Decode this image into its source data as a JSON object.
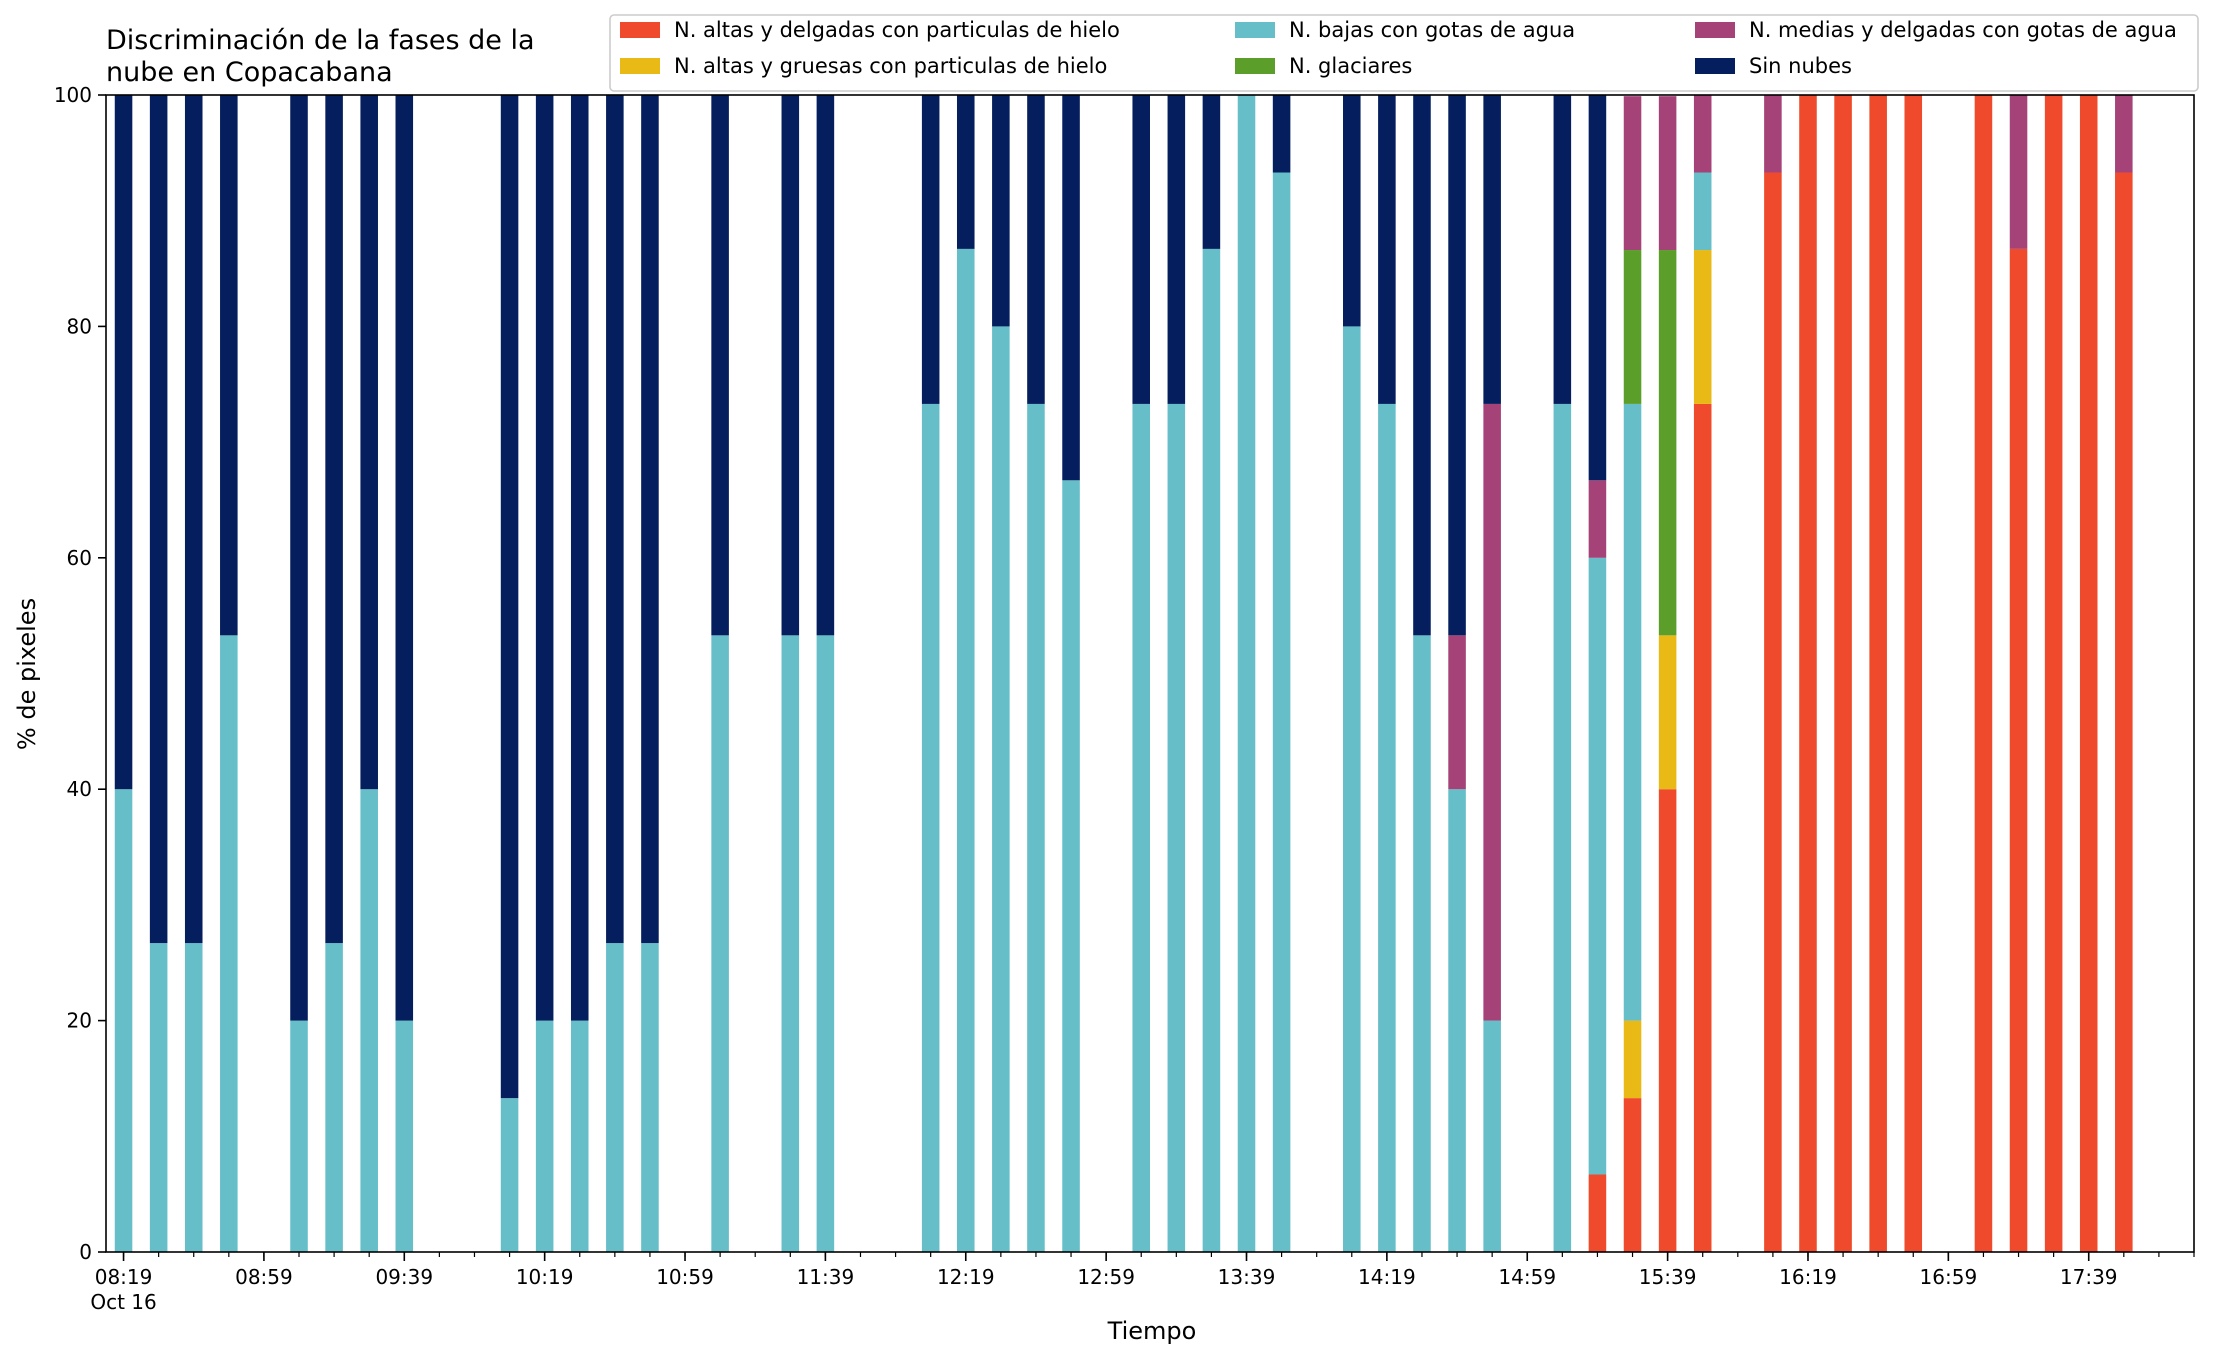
{
  "chart_data": {
    "type": "bar",
    "stacked": true,
    "title": "Discriminación de la fases de la\nnube en Copacabana",
    "xlabel": "Tiempo",
    "ylabel": "% de pixeles",
    "ylim": [
      0,
      100
    ],
    "yticks": [
      0,
      20,
      40,
      60,
      80,
      100
    ],
    "xlim": [
      "08:14",
      "18:09"
    ],
    "xticks": [
      {
        "time": "08:19",
        "label": "08:19",
        "sublabel": "Oct 16"
      },
      {
        "time": "08:59",
        "label": "08:59"
      },
      {
        "time": "09:39",
        "label": "09:39"
      },
      {
        "time": "10:19",
        "label": "10:19"
      },
      {
        "time": "10:59",
        "label": "10:59"
      },
      {
        "time": "11:39",
        "label": "11:39"
      },
      {
        "time": "12:19",
        "label": "12:19"
      },
      {
        "time": "12:59",
        "label": "12:59"
      },
      {
        "time": "13:39",
        "label": "13:39"
      },
      {
        "time": "14:19",
        "label": "14:19"
      },
      {
        "time": "14:59",
        "label": "14:59"
      },
      {
        "time": "15:39",
        "label": "15:39"
      },
      {
        "time": "16:19",
        "label": "16:19"
      },
      {
        "time": "16:59",
        "label": "16:59"
      },
      {
        "time": "17:39",
        "label": "17:39"
      }
    ],
    "minor_tick_interval_minutes": 10,
    "bar_width_minutes": 5,
    "grid": false,
    "legend_position": "top-right",
    "series": [
      {
        "key": "altas_delgadas_hielo",
        "name": "N. altas y delgadas con particulas de hielo",
        "color": "#ee4a2b"
      },
      {
        "key": "altas_gruesas_hielo",
        "name": "N. altas y gruesas con particulas de hielo",
        "color": "#e9b915"
      },
      {
        "key": "bajas_agua",
        "name": "N. bajas con gotas de agua",
        "color": "#66bec9"
      },
      {
        "key": "glaciares",
        "name": "N. glaciares",
        "color": "#5b9e2a"
      },
      {
        "key": "medias_delgadas_agua",
        "name": "N. medias y delgadas con gotas de agua",
        "color": "#a54379"
      },
      {
        "key": "sin_nubes",
        "name": "Sin nubes",
        "color": "#041e5e"
      }
    ],
    "bars": [
      {
        "time": "08:19",
        "altas_delgadas_hielo": 0,
        "altas_gruesas_hielo": 0,
        "bajas_agua": 40,
        "glaciares": 0,
        "medias_delgadas_agua": 0,
        "sin_nubes": 60
      },
      {
        "time": "08:29",
        "altas_delgadas_hielo": 0,
        "altas_gruesas_hielo": 0,
        "bajas_agua": 26.7,
        "glaciares": 0,
        "medias_delgadas_agua": 0,
        "sin_nubes": 73.3
      },
      {
        "time": "08:39",
        "altas_delgadas_hielo": 0,
        "altas_gruesas_hielo": 0,
        "bajas_agua": 26.7,
        "glaciares": 0,
        "medias_delgadas_agua": 0,
        "sin_nubes": 73.3
      },
      {
        "time": "08:49",
        "altas_delgadas_hielo": 0,
        "altas_gruesas_hielo": 0,
        "bajas_agua": 53.3,
        "glaciares": 0,
        "medias_delgadas_agua": 0,
        "sin_nubes": 46.7
      },
      {
        "time": "09:09",
        "altas_delgadas_hielo": 0,
        "altas_gruesas_hielo": 0,
        "bajas_agua": 20,
        "glaciares": 0,
        "medias_delgadas_agua": 0,
        "sin_nubes": 80
      },
      {
        "time": "09:19",
        "altas_delgadas_hielo": 0,
        "altas_gruesas_hielo": 0,
        "bajas_agua": 26.7,
        "glaciares": 0,
        "medias_delgadas_agua": 0,
        "sin_nubes": 73.3
      },
      {
        "time": "09:29",
        "altas_delgadas_hielo": 0,
        "altas_gruesas_hielo": 0,
        "bajas_agua": 40,
        "glaciares": 0,
        "medias_delgadas_agua": 0,
        "sin_nubes": 60
      },
      {
        "time": "09:39",
        "altas_delgadas_hielo": 0,
        "altas_gruesas_hielo": 0,
        "bajas_agua": 20,
        "glaciares": 0,
        "medias_delgadas_agua": 0,
        "sin_nubes": 80
      },
      {
        "time": "10:09",
        "altas_delgadas_hielo": 0,
        "altas_gruesas_hielo": 0,
        "bajas_agua": 13.3,
        "glaciares": 0,
        "medias_delgadas_agua": 0,
        "sin_nubes": 86.7
      },
      {
        "time": "10:19",
        "altas_delgadas_hielo": 0,
        "altas_gruesas_hielo": 0,
        "bajas_agua": 20,
        "glaciares": 0,
        "medias_delgadas_agua": 0,
        "sin_nubes": 80
      },
      {
        "time": "10:29",
        "altas_delgadas_hielo": 0,
        "altas_gruesas_hielo": 0,
        "bajas_agua": 20,
        "glaciares": 0,
        "medias_delgadas_agua": 0,
        "sin_nubes": 80
      },
      {
        "time": "10:39",
        "altas_delgadas_hielo": 0,
        "altas_gruesas_hielo": 0,
        "bajas_agua": 26.7,
        "glaciares": 0,
        "medias_delgadas_agua": 0,
        "sin_nubes": 73.3
      },
      {
        "time": "10:49",
        "altas_delgadas_hielo": 0,
        "altas_gruesas_hielo": 0,
        "bajas_agua": 26.7,
        "glaciares": 0,
        "medias_delgadas_agua": 0,
        "sin_nubes": 73.3
      },
      {
        "time": "11:09",
        "altas_delgadas_hielo": 0,
        "altas_gruesas_hielo": 0,
        "bajas_agua": 53.3,
        "glaciares": 0,
        "medias_delgadas_agua": 0,
        "sin_nubes": 46.7
      },
      {
        "time": "11:29",
        "altas_delgadas_hielo": 0,
        "altas_gruesas_hielo": 0,
        "bajas_agua": 53.3,
        "glaciares": 0,
        "medias_delgadas_agua": 0,
        "sin_nubes": 46.7
      },
      {
        "time": "11:39",
        "altas_delgadas_hielo": 0,
        "altas_gruesas_hielo": 0,
        "bajas_agua": 53.3,
        "glaciares": 0,
        "medias_delgadas_agua": 0,
        "sin_nubes": 46.7
      },
      {
        "time": "12:09",
        "altas_delgadas_hielo": 0,
        "altas_gruesas_hielo": 0,
        "bajas_agua": 73.3,
        "glaciares": 0,
        "medias_delgadas_agua": 0,
        "sin_nubes": 26.7
      },
      {
        "time": "12:19",
        "altas_delgadas_hielo": 0,
        "altas_gruesas_hielo": 0,
        "bajas_agua": 86.7,
        "glaciares": 0,
        "medias_delgadas_agua": 0,
        "sin_nubes": 13.3
      },
      {
        "time": "12:29",
        "altas_delgadas_hielo": 0,
        "altas_gruesas_hielo": 0,
        "bajas_agua": 80,
        "glaciares": 0,
        "medias_delgadas_agua": 0,
        "sin_nubes": 20
      },
      {
        "time": "12:39",
        "altas_delgadas_hielo": 0,
        "altas_gruesas_hielo": 0,
        "bajas_agua": 73.3,
        "glaciares": 0,
        "medias_delgadas_agua": 0,
        "sin_nubes": 26.7
      },
      {
        "time": "12:49",
        "altas_delgadas_hielo": 0,
        "altas_gruesas_hielo": 0,
        "bajas_agua": 66.7,
        "glaciares": 0,
        "medias_delgadas_agua": 0,
        "sin_nubes": 33.3
      },
      {
        "time": "13:09",
        "altas_delgadas_hielo": 0,
        "altas_gruesas_hielo": 0,
        "bajas_agua": 73.3,
        "glaciares": 0,
        "medias_delgadas_agua": 0,
        "sin_nubes": 26.7
      },
      {
        "time": "13:19",
        "altas_delgadas_hielo": 0,
        "altas_gruesas_hielo": 0,
        "bajas_agua": 73.3,
        "glaciares": 0,
        "medias_delgadas_agua": 0,
        "sin_nubes": 26.7
      },
      {
        "time": "13:29",
        "altas_delgadas_hielo": 0,
        "altas_gruesas_hielo": 0,
        "bajas_agua": 86.7,
        "glaciares": 0,
        "medias_delgadas_agua": 0,
        "sin_nubes": 13.3
      },
      {
        "time": "13:39",
        "altas_delgadas_hielo": 0,
        "altas_gruesas_hielo": 0,
        "bajas_agua": 100,
        "glaciares": 0,
        "medias_delgadas_agua": 0,
        "sin_nubes": 0
      },
      {
        "time": "13:49",
        "altas_delgadas_hielo": 0,
        "altas_gruesas_hielo": 0,
        "bajas_agua": 93.3,
        "glaciares": 0,
        "medias_delgadas_agua": 0,
        "sin_nubes": 6.7
      },
      {
        "time": "14:09",
        "altas_delgadas_hielo": 0,
        "altas_gruesas_hielo": 0,
        "bajas_agua": 80,
        "glaciares": 0,
        "medias_delgadas_agua": 0,
        "sin_nubes": 20
      },
      {
        "time": "14:19",
        "altas_delgadas_hielo": 0,
        "altas_gruesas_hielo": 0,
        "bajas_agua": 73.3,
        "glaciares": 0,
        "medias_delgadas_agua": 0,
        "sin_nubes": 26.7
      },
      {
        "time": "14:29",
        "altas_delgadas_hielo": 0,
        "altas_gruesas_hielo": 0,
        "bajas_agua": 53.3,
        "glaciares": 0,
        "medias_delgadas_agua": 0,
        "sin_nubes": 46.7
      },
      {
        "time": "14:39",
        "altas_delgadas_hielo": 0,
        "altas_gruesas_hielo": 0,
        "bajas_agua": 40,
        "glaciares": 0,
        "medias_delgadas_agua": 13.3,
        "sin_nubes": 46.7
      },
      {
        "time": "14:49",
        "altas_delgadas_hielo": 0,
        "altas_gruesas_hielo": 0,
        "bajas_agua": 20,
        "glaciares": 0,
        "medias_delgadas_agua": 53.3,
        "sin_nubes": 26.7
      },
      {
        "time": "15:09",
        "altas_delgadas_hielo": 0,
        "altas_gruesas_hielo": 0,
        "bajas_agua": 73.3,
        "glaciares": 0,
        "medias_delgadas_agua": 0,
        "sin_nubes": 26.7
      },
      {
        "time": "15:19",
        "altas_delgadas_hielo": 6.7,
        "altas_gruesas_hielo": 0,
        "bajas_agua": 53.3,
        "glaciares": 0,
        "medias_delgadas_agua": 6.7,
        "sin_nubes": 33.3
      },
      {
        "time": "15:29",
        "altas_delgadas_hielo": 13.3,
        "altas_gruesas_hielo": 6.7,
        "bajas_agua": 53.3,
        "glaciares": 13.3,
        "medias_delgadas_agua": 13.3,
        "sin_nubes": 0
      },
      {
        "time": "15:39",
        "altas_delgadas_hielo": 40,
        "altas_gruesas_hielo": 13.3,
        "bajas_agua": 0,
        "glaciares": 33.3,
        "medias_delgadas_agua": 13.3,
        "sin_nubes": 0
      },
      {
        "time": "15:49",
        "altas_delgadas_hielo": 73.3,
        "altas_gruesas_hielo": 13.3,
        "bajas_agua": 6.7,
        "glaciares": 0,
        "medias_delgadas_agua": 6.7,
        "sin_nubes": 0
      },
      {
        "time": "16:09",
        "altas_delgadas_hielo": 93.3,
        "altas_gruesas_hielo": 0,
        "bajas_agua": 0,
        "glaciares": 0,
        "medias_delgadas_agua": 6.7,
        "sin_nubes": 0
      },
      {
        "time": "16:19",
        "altas_delgadas_hielo": 100,
        "altas_gruesas_hielo": 0,
        "bajas_agua": 0,
        "glaciares": 0,
        "medias_delgadas_agua": 0,
        "sin_nubes": 0
      },
      {
        "time": "16:29",
        "altas_delgadas_hielo": 100,
        "altas_gruesas_hielo": 0,
        "bajas_agua": 0,
        "glaciares": 0,
        "medias_delgadas_agua": 0,
        "sin_nubes": 0
      },
      {
        "time": "16:39",
        "altas_delgadas_hielo": 100,
        "altas_gruesas_hielo": 0,
        "bajas_agua": 0,
        "glaciares": 0,
        "medias_delgadas_agua": 0,
        "sin_nubes": 0
      },
      {
        "time": "16:49",
        "altas_delgadas_hielo": 100,
        "altas_gruesas_hielo": 0,
        "bajas_agua": 0,
        "glaciares": 0,
        "medias_delgadas_agua": 0,
        "sin_nubes": 0
      },
      {
        "time": "17:09",
        "altas_delgadas_hielo": 100,
        "altas_gruesas_hielo": 0,
        "bajas_agua": 0,
        "glaciares": 0,
        "medias_delgadas_agua": 0,
        "sin_nubes": 0
      },
      {
        "time": "17:19",
        "altas_delgadas_hielo": 86.7,
        "altas_gruesas_hielo": 0,
        "bajas_agua": 0,
        "glaciares": 0,
        "medias_delgadas_agua": 13.3,
        "sin_nubes": 0
      },
      {
        "time": "17:29",
        "altas_delgadas_hielo": 100,
        "altas_gruesas_hielo": 0,
        "bajas_agua": 0,
        "glaciares": 0,
        "medias_delgadas_agua": 0,
        "sin_nubes": 0
      },
      {
        "time": "17:39",
        "altas_delgadas_hielo": 100,
        "altas_gruesas_hielo": 0,
        "bajas_agua": 0,
        "glaciares": 0,
        "medias_delgadas_agua": 0,
        "sin_nubes": 0
      },
      {
        "time": "17:49",
        "altas_delgadas_hielo": 93.3,
        "altas_gruesas_hielo": 0,
        "bajas_agua": 0,
        "glaciares": 0,
        "medias_delgadas_agua": 6.7,
        "sin_nubes": 0
      }
    ]
  }
}
